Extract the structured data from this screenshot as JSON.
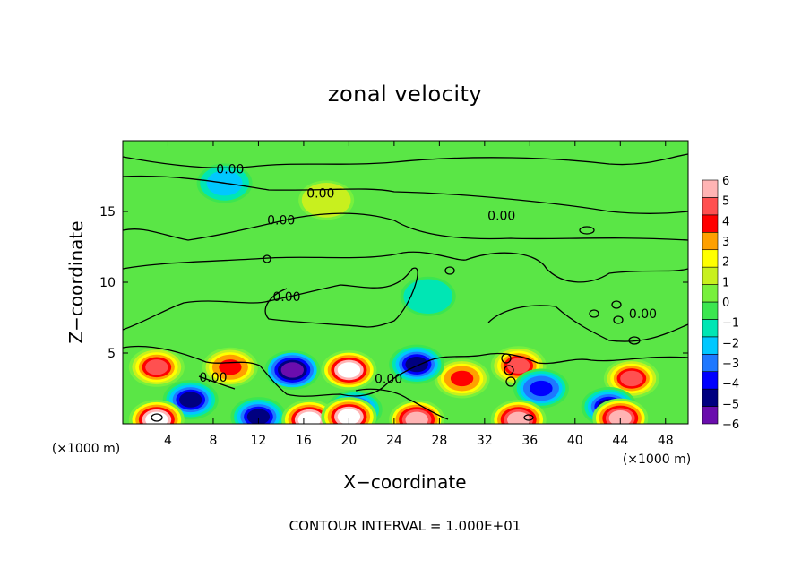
{
  "chart_data": {
    "type": "heatmap",
    "title": "zonal velocity",
    "xlabel": "X−coordinate",
    "ylabel": "Z−coordinate",
    "x_unit_label": "(×1000 m)",
    "x_ticks": [
      "4",
      "8",
      "12",
      "16",
      "20",
      "24",
      "28",
      "32",
      "36",
      "40",
      "44",
      "48"
    ],
    "y_ticks": [
      "5",
      "10",
      "15"
    ],
    "xlim": [
      0,
      50
    ],
    "ylim": [
      0,
      20
    ],
    "colorbar": {
      "labels": [
        "6",
        "5",
        "4",
        "3",
        "2",
        "1",
        "0",
        "−1",
        "−2",
        "−3",
        "−4",
        "−5",
        "−6"
      ],
      "range": [
        -6,
        6
      ],
      "colors": [
        "#6a0dad",
        "#000080",
        "#0000ff",
        "#1e78ff",
        "#00c8ff",
        "#00e6b4",
        "#3ce650",
        "#78f03c",
        "#c8f01e",
        "#ffff00",
        "#ffa000",
        "#ff0000",
        "#ff5050",
        "#ffb4b4"
      ]
    },
    "contour_labels": [
      {
        "text": "0.00",
        "x": 9.5,
        "z": 18.0
      },
      {
        "text": "0.00",
        "x": 17.5,
        "z": 16.3
      },
      {
        "text": "0.00",
        "x": 14,
        "z": 14.4
      },
      {
        "text": "0.00",
        "x": 33.5,
        "z": 14.7
      },
      {
        "text": "0.00",
        "x": 14.5,
        "z": 9.0
      },
      {
        "text": "0.00",
        "x": 46,
        "z": 7.8
      },
      {
        "text": "0.00",
        "x": 8,
        "z": 3.3
      },
      {
        "text": "0.00",
        "x": 23.5,
        "z": 3.2
      }
    ],
    "features": [
      {
        "x": 3,
        "z": 4.0,
        "sign": 1,
        "peak": 5.0
      },
      {
        "x": 9.5,
        "z": 4.0,
        "sign": 1,
        "peak": 4.0
      },
      {
        "x": 20,
        "z": 3.8,
        "sign": 1,
        "peak": 6.5
      },
      {
        "x": 30,
        "z": 3.2,
        "sign": 1,
        "peak": 4.0
      },
      {
        "x": 35,
        "z": 4.1,
        "sign": 1,
        "peak": 4.5
      },
      {
        "x": 45,
        "z": 3.2,
        "sign": 1,
        "peak": 4.5
      },
      {
        "x": 15,
        "z": 3.8,
        "sign": -1,
        "peak": 5.5
      },
      {
        "x": 26,
        "z": 4.2,
        "sign": -1,
        "peak": 4.5
      },
      {
        "x": 6,
        "z": 1.7,
        "sign": -1,
        "peak": 5.0
      },
      {
        "x": 12,
        "z": 0.5,
        "sign": -1,
        "peak": 5.0
      },
      {
        "x": 20.5,
        "z": 1.0,
        "sign": -1,
        "peak": 5.0
      },
      {
        "x": 37,
        "z": 2.5,
        "sign": -1,
        "peak": 4.0
      },
      {
        "x": 43,
        "z": 1.2,
        "sign": -1,
        "peak": 5.0
      },
      {
        "x": 3,
        "z": 0.3,
        "sign": 1,
        "peak": 6.5
      },
      {
        "x": 16.5,
        "z": 0.3,
        "sign": 1,
        "peak": 6.5
      },
      {
        "x": 20,
        "z": 0.5,
        "sign": 1,
        "peak": 6.5
      },
      {
        "x": 26,
        "z": 0.3,
        "sign": 1,
        "peak": 6.0
      },
      {
        "x": 35,
        "z": 0.3,
        "sign": 1,
        "peak": 6.0
      },
      {
        "x": 44,
        "z": 0.4,
        "sign": 1,
        "peak": 6.0
      },
      {
        "x": 9,
        "z": 17.0,
        "sign": -1,
        "peak": 2.5
      },
      {
        "x": 18,
        "z": 15.8,
        "sign": 1,
        "peak": 1.5
      },
      {
        "x": 27,
        "z": 9.0,
        "sign": -1,
        "peak": 1.5
      }
    ]
  },
  "footer": {
    "contour_interval": "CONTOUR INTERVAL =  1.000E+01"
  }
}
